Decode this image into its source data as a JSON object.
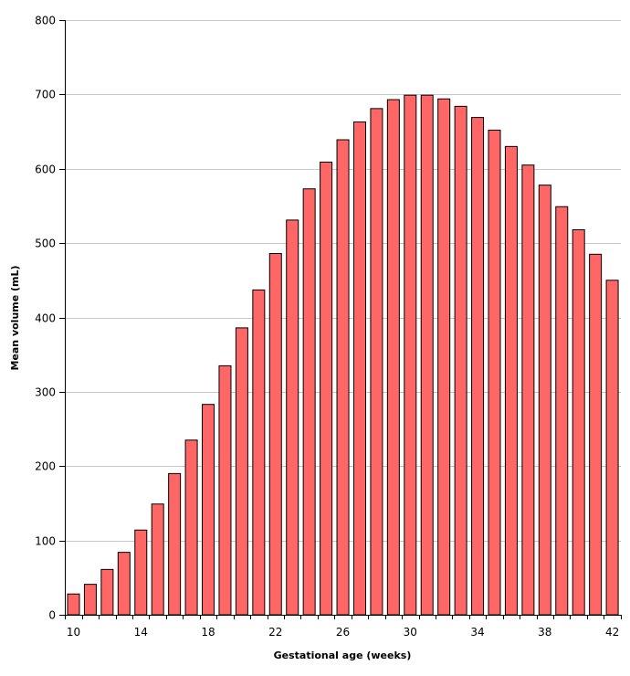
{
  "chart_data": {
    "type": "bar",
    "xlabel": "Gestational age (weeks)",
    "ylabel": "Mean volume (mL)",
    "ylim": [
      0,
      800
    ],
    "yticks": [
      0,
      100,
      200,
      300,
      400,
      500,
      600,
      700,
      800
    ],
    "xticks_labeled": [
      10,
      14,
      18,
      22,
      26,
      30,
      34,
      38,
      42
    ],
    "grid": "horizontal",
    "bar_color": "#ff6666",
    "bar_edge_color": "#000000",
    "categories": [
      10,
      11,
      12,
      13,
      14,
      15,
      16,
      17,
      18,
      19,
      20,
      21,
      22,
      23,
      24,
      25,
      26,
      27,
      28,
      29,
      30,
      31,
      32,
      33,
      34,
      35,
      36,
      37,
      38,
      39,
      40,
      41,
      42
    ],
    "values": [
      28,
      41,
      61,
      84,
      114,
      149,
      190,
      235,
      283,
      335,
      386,
      437,
      486,
      531,
      573,
      609,
      639,
      663,
      681,
      693,
      699,
      699,
      694,
      684,
      669,
      652,
      630,
      605,
      578,
      549,
      518,
      485,
      450
    ]
  }
}
